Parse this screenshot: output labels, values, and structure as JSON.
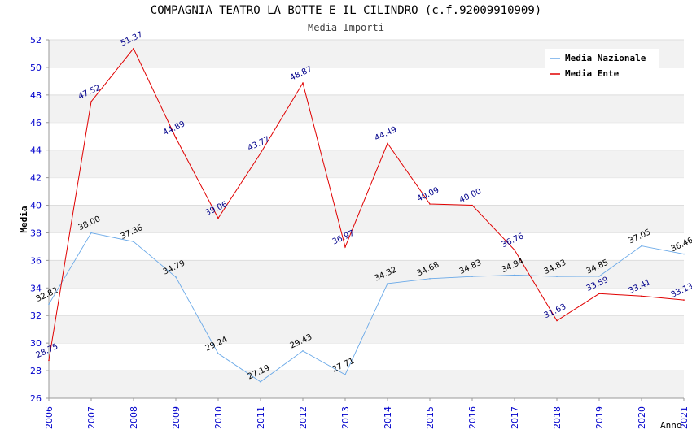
{
  "header": {
    "title": "COMPAGNIA TEATRO LA BOTTE E IL CILINDRO (c.f.92009910909)",
    "subtitle": "Media Importi"
  },
  "chart_data": {
    "type": "line",
    "title": "COMPAGNIA TEATRO LA BOTTE E IL CILINDRO (c.f.92009910909)",
    "subtitle": "Media Importi",
    "xlabel": "Anno",
    "ylabel": "Media",
    "x": [
      "2006",
      "2007",
      "2008",
      "2009",
      "2010",
      "2011",
      "2012",
      "2013",
      "2014",
      "2015",
      "2016",
      "2017",
      "2018",
      "2019",
      "2020",
      "2021"
    ],
    "ylim": [
      26,
      52
    ],
    "yticks": [
      26,
      28,
      30,
      32,
      34,
      36,
      38,
      40,
      42,
      44,
      46,
      48,
      50,
      52
    ],
    "grid": "horizontal alternating bands",
    "legend_position": "top-right",
    "series": [
      {
        "name": "Media Nazionale",
        "color": "#6aa9e8",
        "label_color": "#000000",
        "values": [
          32.82,
          38.0,
          37.36,
          34.79,
          29.24,
          27.19,
          29.43,
          27.71,
          34.32,
          34.68,
          34.83,
          34.94,
          34.83,
          34.85,
          37.05,
          36.46
        ],
        "labels": [
          "32.82",
          "38.00",
          "37.36",
          "34.79",
          "29.24",
          "27.19",
          "29.43",
          "27.71",
          "34.32",
          "34.68",
          "34.83",
          "34.94",
          "34.83",
          "34.85",
          "37.05",
          "36.46"
        ]
      },
      {
        "name": "Media Ente",
        "color": "#e00000",
        "label_color": "#00008b",
        "values": [
          28.75,
          47.52,
          51.37,
          44.89,
          39.06,
          43.77,
          48.87,
          36.97,
          44.49,
          40.09,
          40.0,
          36.76,
          31.63,
          33.59,
          33.41,
          33.13
        ],
        "labels": [
          "28.75",
          "47.52",
          "51.37",
          "44.89",
          "39.06",
          "43.77",
          "48.87",
          "36.97",
          "44.49",
          "40.09",
          "40.00",
          "36.76",
          "31.63",
          "33.59",
          "33.41",
          "33.13"
        ]
      }
    ]
  }
}
